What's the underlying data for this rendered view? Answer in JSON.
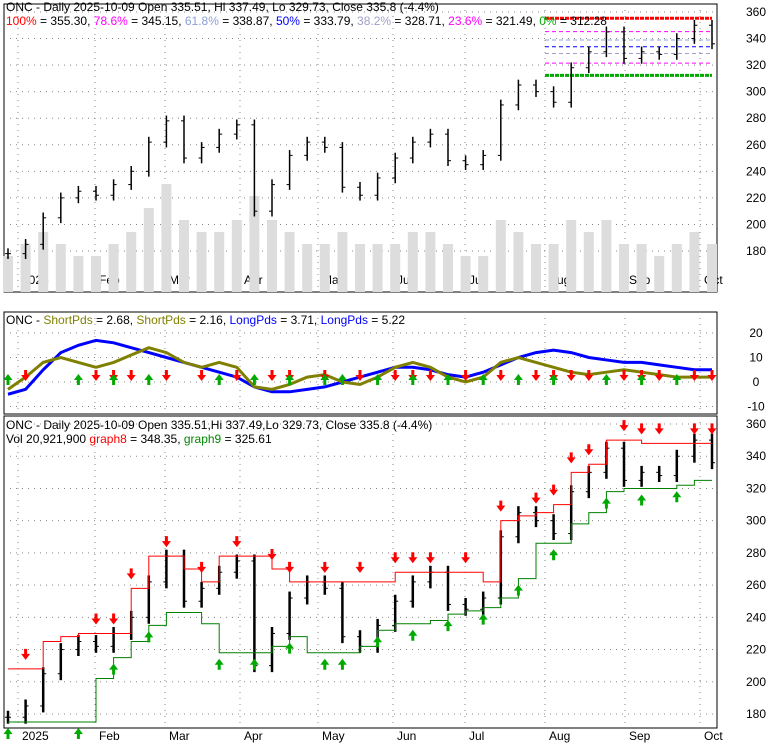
{
  "header": {
    "title": "ONC - Daily 2025-10-09 Open 335.51, Hi 337.49, Lo 329.73, Close 335.8 (-4.4%)"
  },
  "fib": [
    {
      "label": "100%",
      "value": "355.30",
      "color": "#ff0000"
    },
    {
      "label": "78.6%",
      "value": "345.15",
      "color": "#ff00ff"
    },
    {
      "label": "61.8%",
      "value": "338.87",
      "color": "#8ca0d8"
    },
    {
      "label": "50%",
      "value": "333.79",
      "color": "#0000ff"
    },
    {
      "label": "38.2%",
      "value": "328.71",
      "color": "#a0a0c8"
    },
    {
      "label": "23.6%",
      "value": "321.49",
      "color": "#ff00ff"
    },
    {
      "label": "0%",
      "value": "312.28",
      "color": "#00aa00"
    }
  ],
  "osc": {
    "prefix": "ONC - ",
    "items": [
      {
        "label": "ShortPds",
        "value": "2.68",
        "color": "#808000"
      },
      {
        "label": "ShortPds",
        "value": "2.16",
        "color": "#808000"
      },
      {
        "label": "LongPds",
        "value": "3.71",
        "color": "#0000ff"
      },
      {
        "label": "LongPds",
        "value": "5.22",
        "color": "#0000ff"
      }
    ]
  },
  "lower": {
    "title": "ONC - Daily 2025-10-09 Open 335.51,Hi 337.49,Lo 329.73, Close 335.8 (-4.4%)",
    "vol": "Vol 20,921,900",
    "g8_label": "graph8",
    "g8_value": "348.35",
    "g9_label": "graph9",
    "g9_value": "325.61"
  },
  "chart_data": {
    "type": "line",
    "months": [
      "2025",
      "Feb",
      "Mar",
      "Apr",
      "May",
      "Jun",
      "Jul",
      "Aug",
      "Sep",
      "Oct"
    ],
    "price_ticks": [
      180,
      200,
      220,
      240,
      260,
      280,
      300,
      320,
      340,
      360
    ],
    "osc_ticks": [
      20,
      10,
      0,
      -10
    ],
    "ylim_price": [
      170,
      362
    ],
    "ylim_osc": [
      -12,
      24
    ],
    "close": [
      178,
      185,
      205,
      220,
      225,
      222,
      230,
      240,
      262,
      278,
      250,
      258,
      268,
      275,
      210,
      230,
      252,
      262,
      258,
      228,
      222,
      235,
      250,
      262,
      268,
      248,
      245,
      252,
      290,
      305,
      300,
      292,
      318,
      330,
      345,
      325,
      330,
      328,
      340,
      350,
      336
    ],
    "volume": [
      3,
      4,
      5,
      4,
      3,
      3,
      4,
      5,
      7,
      9,
      6,
      5,
      5,
      6,
      8,
      6,
      5,
      4,
      4,
      5,
      4,
      4,
      4,
      5,
      5,
      4,
      3,
      3,
      6,
      5,
      4,
      4,
      6,
      5,
      6,
      4,
      4,
      3,
      4,
      5,
      4
    ],
    "long_pds": [
      -5,
      -3,
      5,
      12,
      15,
      17,
      16,
      14,
      12,
      10,
      8,
      6,
      4,
      2,
      -2,
      -4,
      -4,
      -3,
      -2,
      0,
      2,
      4,
      6,
      6,
      5,
      3,
      2,
      4,
      7,
      10,
      12,
      13,
      12,
      10,
      9,
      8,
      8,
      7,
      6,
      5,
      5
    ],
    "short_pds": [
      -3,
      2,
      8,
      10,
      8,
      6,
      8,
      11,
      14,
      12,
      8,
      6,
      8,
      6,
      -2,
      -3,
      -1,
      2,
      3,
      0,
      -1,
      2,
      6,
      8,
      6,
      2,
      0,
      2,
      8,
      10,
      8,
      6,
      4,
      3,
      4,
      5,
      4,
      3,
      2,
      2,
      2
    ],
    "graph8": [
      208,
      208,
      225,
      228,
      230,
      230,
      230,
      258,
      278,
      278,
      270,
      262,
      278,
      278,
      278,
      270,
      262,
      262,
      262,
      262,
      262,
      262,
      268,
      268,
      268,
      268,
      268,
      262,
      300,
      303,
      305,
      310,
      330,
      335,
      350,
      350,
      348,
      348,
      348,
      348,
      348
    ],
    "graph9": [
      175,
      175,
      175,
      175,
      175,
      202,
      215,
      225,
      235,
      243,
      243,
      236,
      218,
      218,
      218,
      222,
      228,
      218,
      218,
      218,
      222,
      232,
      236,
      236,
      238,
      242,
      244,
      246,
      252,
      264,
      286,
      286,
      298,
      305,
      318,
      320,
      320,
      320,
      322,
      325,
      325
    ],
    "sell_signals": [
      1,
      5,
      6,
      7,
      9,
      11,
      13,
      15,
      16,
      18,
      20,
      22,
      23,
      24,
      26,
      28,
      30,
      31,
      32,
      33,
      35,
      36,
      37,
      39,
      40
    ],
    "buy_signals": [
      0,
      4,
      6,
      8,
      12,
      14,
      16,
      18,
      19,
      21,
      23,
      25,
      27,
      29,
      31,
      34,
      36,
      38
    ]
  }
}
